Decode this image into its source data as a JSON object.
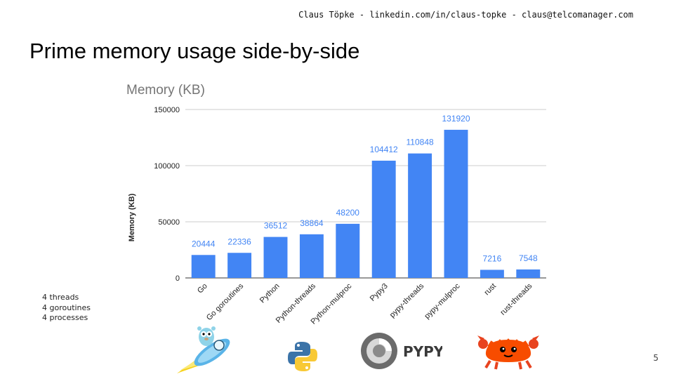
{
  "header": {
    "contact": "Claus Töpke - linkedin.com/in/claus-topke - claus@telcomanager.com"
  },
  "slide": {
    "title": "Prime memory usage side-by-side",
    "number": "5"
  },
  "notes": [
    "4 threads",
    "4 goroutines",
    "4 processes"
  ],
  "logos": {
    "go": "go-gopher-rocket-logo",
    "python": "python-logo",
    "pypy": "pypy-logo",
    "pypy_text": "PYPY",
    "rust": "rust-crab-logo"
  },
  "colors": {
    "bar": "#4285f4",
    "label": "#4285f4",
    "grid": "#cccccc"
  },
  "chart_data": {
    "type": "bar",
    "title": "Memory (KB)",
    "xlabel": "",
    "ylabel": "Memory (KB)",
    "ylim": [
      0,
      150000
    ],
    "yticks": [
      0,
      50000,
      100000,
      150000
    ],
    "categories": [
      "Go",
      "Go goroutines",
      "Python",
      "Python-threads",
      "Python-mulproc",
      "Pypy3",
      "pypy-threads",
      "pypy-mulproc",
      "rust",
      "rust-threads"
    ],
    "values": [
      20444,
      22336,
      36512,
      38864,
      48200,
      104412,
      110848,
      131920,
      7216,
      7548
    ],
    "grid": true,
    "legend": "none"
  }
}
